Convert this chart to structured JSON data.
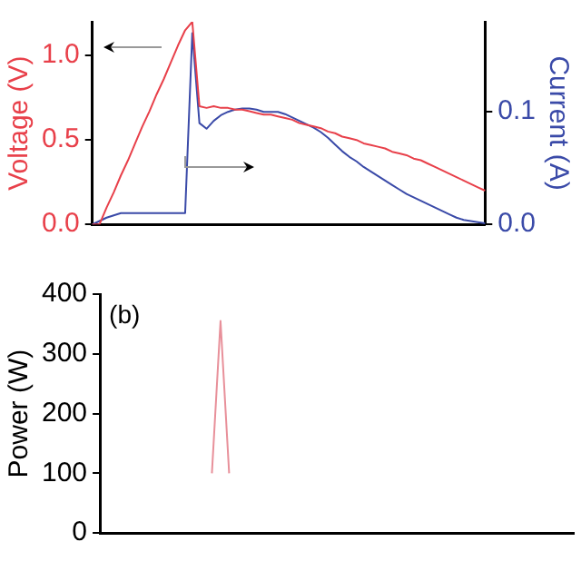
{
  "chart_data": [
    {
      "type": "line",
      "ylabel": "Voltage (V)",
      "y2label": "Current (A)",
      "categories": [
        null,
        null,
        null,
        null,
        null,
        null,
        null,
        null,
        null,
        null,
        null,
        null,
        null,
        null,
        null,
        null,
        null,
        null,
        null,
        null,
        null,
        null,
        null,
        null,
        null,
        null,
        null,
        null,
        null,
        null,
        null,
        null,
        null,
        null,
        null,
        null,
        null,
        null,
        null,
        null,
        null,
        null,
        null,
        null,
        null,
        null,
        null,
        null,
        null,
        null,
        null,
        null,
        null,
        null,
        null,
        null
      ],
      "series": [
        {
          "color": "#e8404a",
          "values": [
            0,
            0,
            0.1,
            0.19,
            0.29,
            0.38,
            0.48,
            0.58,
            0.67,
            0.77,
            0.86,
            0.96,
            1.06,
            1.15,
            1.2,
            0.7,
            0.69,
            0.7,
            0.69,
            0.69,
            0.68,
            0.68,
            0.67,
            0.66,
            0.65,
            0.65,
            0.64,
            0.63,
            0.62,
            0.6,
            0.59,
            0.58,
            0.57,
            0.55,
            0.54,
            0.52,
            0.51,
            0.5,
            0.48,
            0.47,
            0.46,
            0.45,
            0.43,
            0.42,
            0.41,
            0.39,
            0.38,
            0.36,
            0.34,
            0.32,
            0.3,
            0.28,
            0.26,
            0.24,
            0.22,
            0.2
          ]
        },
        {
          "color": "#3a4aa8",
          "axis": "y2",
          "values": [
            0,
            0.003,
            0.006,
            0.008,
            0.01,
            0.01,
            0.01,
            0.01,
            0.01,
            0.01,
            0.01,
            0.01,
            0.01,
            0.01,
            0.17,
            0.09,
            0.085,
            0.092,
            0.097,
            0.1,
            0.102,
            0.103,
            0.103,
            0.102,
            0.1,
            0.1,
            0.1,
            0.098,
            0.095,
            0.092,
            0.089,
            0.086,
            0.082,
            0.077,
            0.071,
            0.065,
            0.06,
            0.056,
            0.051,
            0.047,
            0.043,
            0.039,
            0.035,
            0.031,
            0.027,
            0.024,
            0.021,
            0.018,
            0.015,
            0.012,
            0.009,
            0.006,
            0.004,
            0.003,
            0.002,
            0.001
          ]
        }
      ],
      "ylim": [
        0,
        1.2
      ],
      "yticks": [
        {
          "value": 0,
          "label": "0.0"
        },
        {
          "value": 0.5,
          "label": "0.5"
        },
        {
          "value": 1,
          "label": "1.0"
        }
      ],
      "y2lim": [
        0,
        0.18
      ],
      "y2ticks": [
        {
          "value": 0,
          "label": "0.0"
        },
        {
          "value": 0.1,
          "label": "0.1"
        }
      ],
      "marker": "none",
      "line_style": "solid",
      "grid": false,
      "legend": false
    },
    {
      "type": "line",
      "ylabel": "Power (W)",
      "annotations": [
        "(b)"
      ],
      "categories": [
        null,
        null,
        null,
        null,
        null,
        null,
        null,
        null,
        null,
        null,
        null,
        null,
        null,
        null,
        null,
        null,
        null,
        null,
        null,
        null,
        null,
        null,
        null,
        null,
        null,
        null,
        null,
        null,
        null,
        null,
        null,
        null,
        null,
        null,
        null,
        null,
        null,
        null,
        null,
        null,
        null,
        null,
        null,
        null,
        null,
        null,
        null,
        null,
        null,
        null,
        null,
        null,
        null,
        null,
        null,
        null
      ],
      "series": [
        {
          "color": "#e8909a",
          "values": [
            null,
            null,
            null,
            null,
            null,
            null,
            null,
            null,
            null,
            null,
            null,
            null,
            null,
            100,
            355,
            100,
            null,
            null,
            null,
            null,
            null,
            null,
            null,
            null,
            null,
            null,
            null,
            null,
            null,
            null,
            null,
            null,
            null,
            null,
            null,
            null,
            null,
            null,
            null,
            null,
            null,
            null,
            null,
            null,
            null,
            null,
            null,
            null,
            null,
            null,
            null,
            null,
            null,
            null,
            null,
            null
          ]
        }
      ],
      "ylim": [
        0,
        400
      ],
      "yticks": [
        0,
        100,
        200,
        300,
        400
      ],
      "marker": "none",
      "line_style": "solid",
      "grid": false,
      "legend": false
    }
  ]
}
